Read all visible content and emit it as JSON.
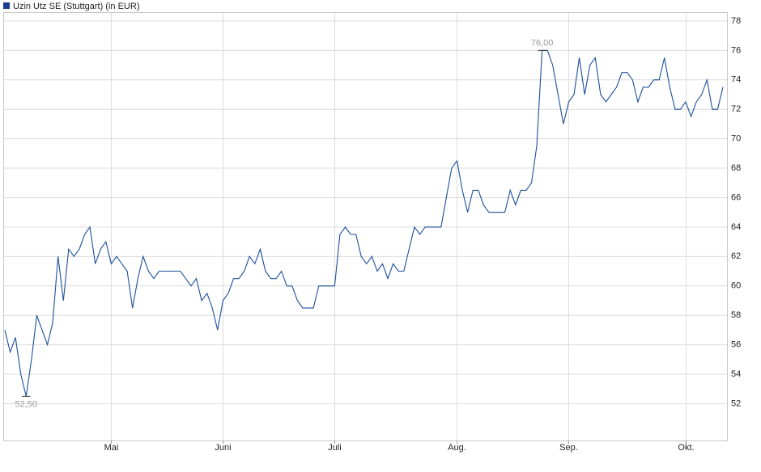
{
  "chart_data": {
    "type": "line",
    "legend": "top-left",
    "grid": true,
    "series": [
      {
        "name": "Uzin Utz SE (Stuttgart) (in EUR)",
        "color": "#1c4f9c",
        "legend_color": "#1a3d8f",
        "values": [
          57,
          55.5,
          56.5,
          54,
          52.5,
          55,
          58,
          57,
          56,
          57.5,
          62,
          59,
          62.5,
          62,
          62.5,
          63.5,
          64,
          61.5,
          62.5,
          63,
          61.5,
          62,
          61.5,
          61,
          58.5,
          60.5,
          62,
          61,
          60.5,
          61,
          61,
          61,
          61,
          61,
          60.5,
          60,
          60.5,
          59,
          59.5,
          58.5,
          57,
          59,
          59.5,
          60.5,
          60.5,
          61,
          62,
          61.5,
          62.5,
          61,
          60.5,
          60.5,
          61,
          60,
          60,
          59,
          58.5,
          58.5,
          58.5,
          60,
          60,
          60,
          60,
          63.5,
          64,
          63.5,
          63.5,
          62,
          61.5,
          62,
          61,
          61.5,
          60.5,
          61.5,
          61,
          61,
          62.5,
          64,
          63.5,
          64,
          64,
          64,
          64,
          66,
          68,
          68.5,
          66.5,
          65,
          66.5,
          66.5,
          65.5,
          65,
          65,
          65,
          65,
          66.5,
          65.5,
          66.5,
          66.5,
          67,
          69.5,
          76,
          76,
          75,
          73,
          71,
          72.5,
          73,
          75.5,
          73,
          75,
          75.5,
          73,
          72.5,
          73,
          73.5,
          74.5,
          74.5,
          74,
          72.5,
          73.5,
          73.5,
          74,
          74,
          75.5,
          73.5,
          72,
          72,
          72.5,
          71.5,
          72.5,
          73,
          74,
          72,
          72,
          73.5
        ],
        "value_labels": [
          null,
          null,
          null,
          null,
          "52,50",
          null,
          null,
          null,
          null,
          null,
          null,
          null,
          null,
          null,
          null,
          null,
          null,
          null,
          null,
          null,
          null,
          null,
          null,
          null,
          null,
          null,
          null,
          null,
          null,
          null,
          null,
          null,
          null,
          null,
          null,
          null,
          null,
          null,
          null,
          null,
          null,
          null,
          null,
          null,
          null,
          null,
          null,
          null,
          null,
          null,
          null,
          null,
          null,
          null,
          null,
          null,
          null,
          null,
          null,
          null,
          null,
          null,
          null,
          null,
          null,
          null,
          null,
          null,
          null,
          null,
          null,
          null,
          null,
          null,
          null,
          null,
          null,
          null,
          null,
          null,
          null,
          null,
          null,
          null,
          null,
          null,
          null,
          null,
          null,
          null,
          null,
          null,
          null,
          null,
          null,
          null,
          null,
          null,
          null,
          null,
          null,
          "76,00",
          null,
          null,
          null,
          null,
          null,
          null,
          null,
          null,
          null,
          null,
          null,
          null,
          null,
          null,
          null,
          null,
          null,
          null,
          null,
          null,
          null,
          null,
          null,
          null,
          null,
          null,
          null,
          null,
          null,
          null,
          null,
          null,
          null,
          null
        ]
      }
    ],
    "categories": [
      null,
      null,
      null,
      null,
      null,
      null,
      null,
      null,
      null,
      null,
      null,
      null,
      null,
      null,
      null,
      null,
      null,
      null,
      null,
      null,
      "Mai",
      null,
      null,
      null,
      null,
      null,
      null,
      null,
      null,
      null,
      null,
      null,
      null,
      null,
      null,
      null,
      null,
      null,
      null,
      null,
      null,
      "Juni",
      null,
      null,
      null,
      null,
      null,
      null,
      null,
      null,
      null,
      null,
      null,
      null,
      null,
      null,
      null,
      null,
      null,
      null,
      null,
      null,
      "Juli",
      null,
      null,
      null,
      null,
      null,
      null,
      null,
      null,
      null,
      null,
      null,
      null,
      null,
      null,
      null,
      null,
      null,
      null,
      null,
      null,
      null,
      null,
      "Aug.",
      null,
      null,
      null,
      null,
      null,
      null,
      null,
      null,
      null,
      null,
      null,
      null,
      null,
      null,
      null,
      null,
      null,
      null,
      null,
      null,
      "Sep.",
      null,
      null,
      null,
      null,
      null,
      null,
      null,
      null,
      null,
      null,
      null,
      null,
      null,
      null,
      null,
      null,
      null,
      null,
      null,
      null,
      null,
      "Okt.",
      null,
      null,
      null,
      null,
      null,
      null,
      null
    ],
    "ylim": [
      49.5,
      78.6
    ],
    "yticks": [
      52,
      54,
      56,
      58,
      60,
      62,
      64,
      66,
      68,
      70,
      72,
      74,
      76,
      78
    ]
  }
}
